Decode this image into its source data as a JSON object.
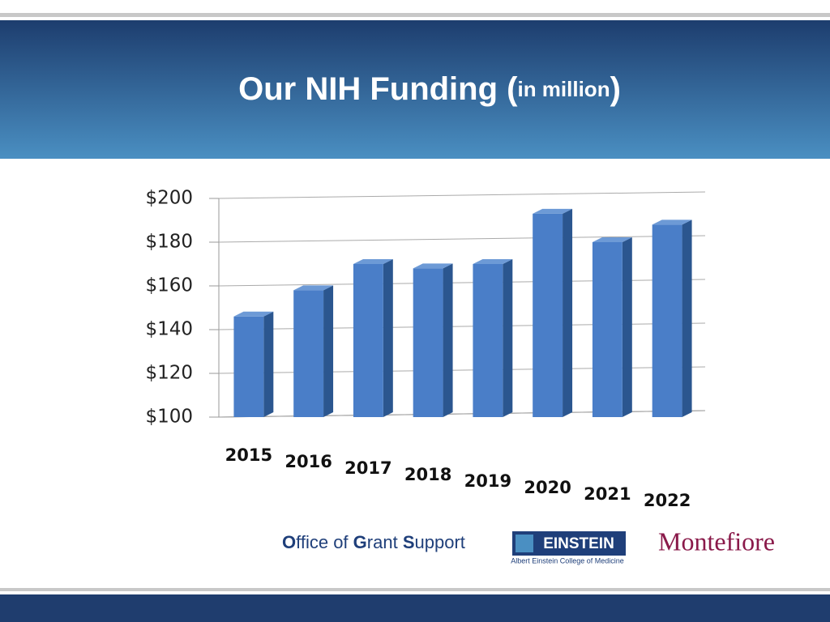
{
  "chart_data": {
    "type": "bar3d",
    "title_parts": [
      "Our NIH Funding (",
      "in million",
      ")"
    ],
    "categories": [
      "2015",
      "2016",
      "2017",
      "2018",
      "2019",
      "2020",
      "2021",
      "2022"
    ],
    "values": [
      146,
      158,
      170,
      168,
      170,
      193,
      180,
      188
    ],
    "color": "#4a7ec8",
    "ylim": [
      100,
      200
    ],
    "yticks": [
      {
        "value": 100,
        "label": "$100"
      },
      {
        "value": 120,
        "label": "$120"
      },
      {
        "value": 140,
        "label": "$140"
      },
      {
        "value": 160,
        "label": "$160"
      },
      {
        "value": 180,
        "label": "$180"
      },
      {
        "value": 200,
        "label": "$200"
      }
    ],
    "grid": true
  },
  "footer": {
    "office_parts": [
      "O",
      "ffice of ",
      "G",
      "rant ",
      "S",
      "upport"
    ],
    "einstein": "EINSTEIN",
    "einstein_sub": "Albert Einstein College of Medicine",
    "montefiore": "Montefiore"
  }
}
